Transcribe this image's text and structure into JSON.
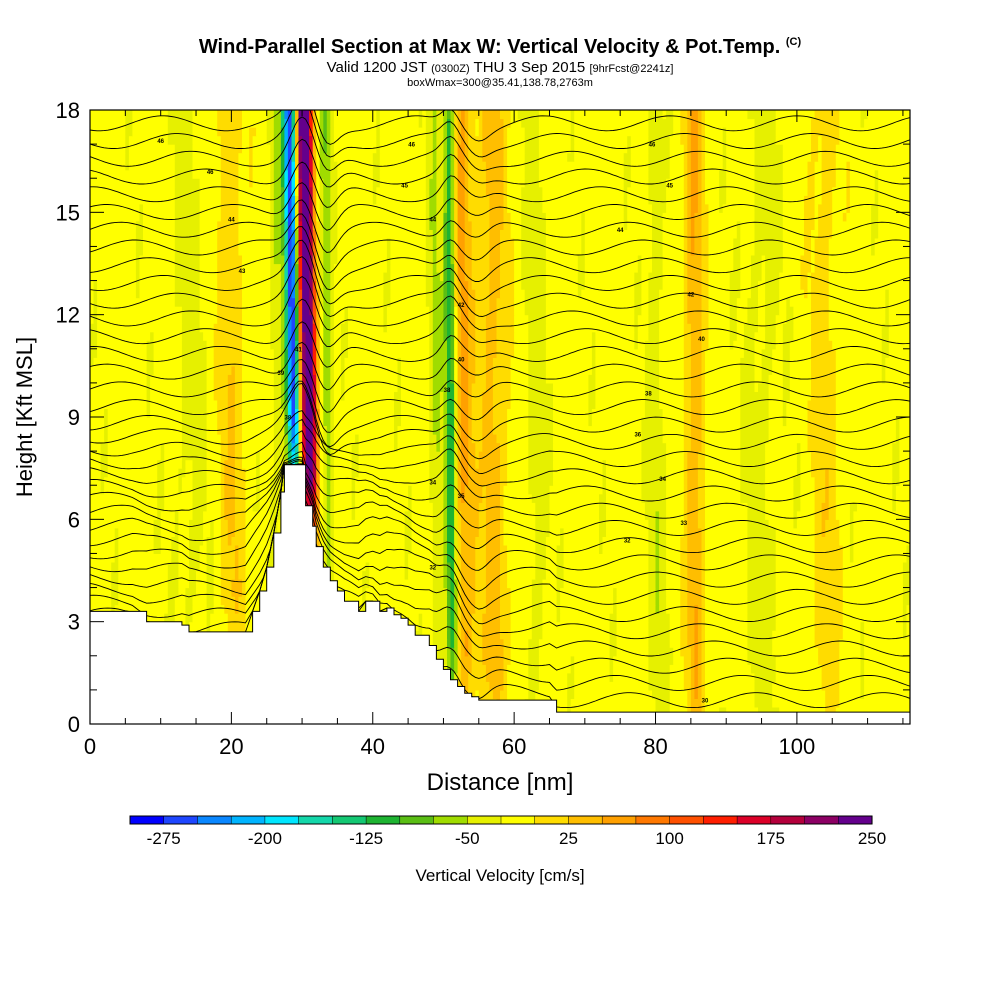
{
  "header": {
    "title": "Wind-Parallel Section at Max W: Vertical Velocity & Pot.Temp.",
    "copyright": "(C)",
    "valid_prefix": "Valid 1200 JST",
    "valid_utc": "(0300Z)",
    "valid_date": "THU 3 Sep 2015",
    "forecast": "[9hrFcst@2241z]",
    "box_info": "boxWmax=300@35.41,138.78,2763m"
  },
  "chart_data": {
    "type": "heatmap",
    "xlabel": "Distance [nm]",
    "ylabel": "Height [Kft MSL]",
    "xlim": [
      0,
      116
    ],
    "ylim": [
      0,
      18
    ],
    "x_ticks": [
      0,
      20,
      40,
      60,
      80,
      100
    ],
    "y_ticks": [
      0,
      3,
      6,
      9,
      12,
      15,
      18
    ],
    "grid": false,
    "colorbar": {
      "label": "Vertical Velocity [cm/s]",
      "placement": "bottom",
      "tick_labels": [
        "-275",
        "-200",
        "-125",
        "-50",
        "25",
        "100",
        "175",
        "250"
      ],
      "colors": [
        "#0000ff",
        "#1e46ff",
        "#0a87ff",
        "#00b4ff",
        "#00e6ff",
        "#14d7aa",
        "#14c873",
        "#1eb432",
        "#5abe14",
        "#a0dc00",
        "#e6f000",
        "#ffff00",
        "#ffdc00",
        "#ffbe00",
        "#ffa000",
        "#ff7800",
        "#ff5000",
        "#ff1e00",
        "#dc0028",
        "#b4003c",
        "#8c0064",
        "#64008c"
      ]
    },
    "terrain_profile": [
      [
        0,
        3.3
      ],
      [
        6,
        3.3
      ],
      [
        8,
        3.0
      ],
      [
        13,
        2.9
      ],
      [
        14,
        2.7
      ],
      [
        18,
        2.7
      ],
      [
        22,
        2.7
      ],
      [
        23,
        3.3
      ],
      [
        24,
        3.9
      ],
      [
        25,
        4.6
      ],
      [
        26,
        5.6
      ],
      [
        27,
        6.8
      ],
      [
        27.5,
        7.6
      ],
      [
        30,
        7.6
      ],
      [
        30.5,
        6.4
      ],
      [
        31.5,
        5.8
      ],
      [
        32,
        5.2
      ],
      [
        33,
        4.6
      ],
      [
        34,
        4.2
      ],
      [
        35,
        3.9
      ],
      [
        36,
        3.6
      ],
      [
        38,
        3.3
      ],
      [
        39,
        3.6
      ],
      [
        40,
        3.6
      ],
      [
        41,
        3.3
      ],
      [
        42,
        3.4
      ],
      [
        43,
        3.2
      ],
      [
        44,
        3.1
      ],
      [
        45,
        2.9
      ],
      [
        46,
        2.6
      ],
      [
        48,
        2.3
      ],
      [
        49,
        1.9
      ],
      [
        50,
        1.6
      ],
      [
        51,
        1.3
      ],
      [
        52,
        1.1
      ],
      [
        53,
        0.9
      ],
      [
        54,
        0.8
      ],
      [
        55,
        0.7
      ],
      [
        60,
        0.7
      ],
      [
        65,
        0.7
      ],
      [
        66,
        0.35
      ],
      [
        116,
        0.35
      ]
    ],
    "vertical_velocity_features": [
      {
        "x": 28.7,
        "half_width_nm": 0.9,
        "w_cm_s": -270
      },
      {
        "x": 31.0,
        "half_width_nm": 1.0,
        "w_cm_s": 300
      },
      {
        "x": 30.0,
        "half_width_nm": 0.6,
        "w_cm_s": 100
      },
      {
        "x": 33.5,
        "half_width_nm": 0.8,
        "w_cm_s": -60
      },
      {
        "x": 26.5,
        "half_width_nm": 1.0,
        "w_cm_s": -35
      },
      {
        "x": 51.0,
        "half_width_nm": 0.8,
        "w_cm_s": -125
      },
      {
        "x": 52.8,
        "half_width_nm": 1.5,
        "w_cm_s": 75
      },
      {
        "x": 49.0,
        "half_width_nm": 0.9,
        "w_cm_s": -40
      },
      {
        "x": 57.0,
        "half_width_nm": 2.0,
        "w_cm_s": 55
      },
      {
        "x": 63.0,
        "half_width_nm": 1.5,
        "w_cm_s": -25
      },
      {
        "x": 85.5,
        "half_width_nm": 1.3,
        "w_cm_s": 70
      },
      {
        "x": 80.0,
        "half_width_nm": 1.2,
        "w_cm_s": -30
      },
      {
        "x": 14.0,
        "half_width_nm": 2.5,
        "w_cm_s": -20
      },
      {
        "x": 20.0,
        "half_width_nm": 1.8,
        "w_cm_s": 40
      },
      {
        "x": 95.0,
        "half_width_nm": 2.5,
        "w_cm_s": -22
      },
      {
        "x": 104.0,
        "half_width_nm": 2.0,
        "w_cm_s": 30
      }
    ],
    "isentrope_labels": [
      {
        "text": "46",
        "x": 10,
        "y": 17.1
      },
      {
        "text": "46",
        "x": 17,
        "y": 16.2
      },
      {
        "text": "44",
        "x": 20,
        "y": 14.8
      },
      {
        "text": "43",
        "x": 21.5,
        "y": 13.3
      },
      {
        "text": "39",
        "x": 27,
        "y": 10.3
      },
      {
        "text": "38",
        "x": 28,
        "y": 9.0
      },
      {
        "text": "41",
        "x": 29.5,
        "y": 11.0
      },
      {
        "text": "46",
        "x": 45.5,
        "y": 17.0
      },
      {
        "text": "45",
        "x": 44.5,
        "y": 15.8
      },
      {
        "text": "44",
        "x": 48.5,
        "y": 14.8
      },
      {
        "text": "42",
        "x": 52.5,
        "y": 12.3
      },
      {
        "text": "40",
        "x": 52.5,
        "y": 10.7
      },
      {
        "text": "38",
        "x": 50.5,
        "y": 9.8
      },
      {
        "text": "34",
        "x": 48.5,
        "y": 7.1
      },
      {
        "text": "35",
        "x": 52.5,
        "y": 6.7
      },
      {
        "text": "32",
        "x": 48.5,
        "y": 4.6
      },
      {
        "text": "46",
        "x": 79.5,
        "y": 17.0
      },
      {
        "text": "45",
        "x": 82,
        "y": 15.8
      },
      {
        "text": "44",
        "x": 75,
        "y": 14.5
      },
      {
        "text": "42",
        "x": 85,
        "y": 12.6
      },
      {
        "text": "40",
        "x": 86.5,
        "y": 11.3
      },
      {
        "text": "38",
        "x": 79,
        "y": 9.7
      },
      {
        "text": "36",
        "x": 77.5,
        "y": 8.5
      },
      {
        "text": "34",
        "x": 81,
        "y": 7.2
      },
      {
        "text": "33",
        "x": 84,
        "y": 5.9
      },
      {
        "text": "32",
        "x": 76,
        "y": 5.4
      },
      {
        "text": "30",
        "x": 87,
        "y": 0.7
      }
    ]
  }
}
